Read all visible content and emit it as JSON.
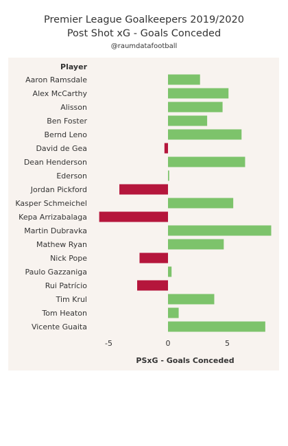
{
  "header": {
    "title": "Premier League Goalkeepers 2019/2020",
    "subtitle": "Post Shot xG - Goals Conceded",
    "credit": "@raumdatafootball"
  },
  "colors": {
    "background": "#f8f3ef",
    "positive": "#7dc36b",
    "negative": "#b5163c",
    "text": "#333333"
  },
  "chart_data": {
    "type": "bar",
    "orientation": "horizontal",
    "row_header": "Player",
    "xlabel": "PSxG - Goals Conceded",
    "xlim": [
      -7,
      9
    ],
    "xticks": [
      -5,
      0,
      5
    ],
    "grid": false,
    "categories": [
      "Aaron Ramsdale",
      "Alex McCarthy",
      "Alisson",
      "Ben Foster",
      "Bernd Leno",
      "David de Gea",
      "Dean Henderson",
      "Ederson",
      "Jordan Pickford",
      "Kasper Schmeichel",
      "Kepa Arrizabalaga",
      "Martin Dubravka",
      "Mathew Ryan",
      "Nick Pope",
      "Paulo Gazzaniga",
      "Rui Patrício",
      "Tim Krul",
      "Tom Heaton",
      "Vicente Guaita"
    ],
    "values": [
      2.7,
      5.1,
      4.6,
      3.3,
      6.2,
      -0.3,
      6.5,
      0.1,
      -4.1,
      5.5,
      -5.8,
      8.7,
      4.7,
      -2.4,
      0.3,
      -2.6,
      3.9,
      0.9,
      8.2
    ]
  }
}
